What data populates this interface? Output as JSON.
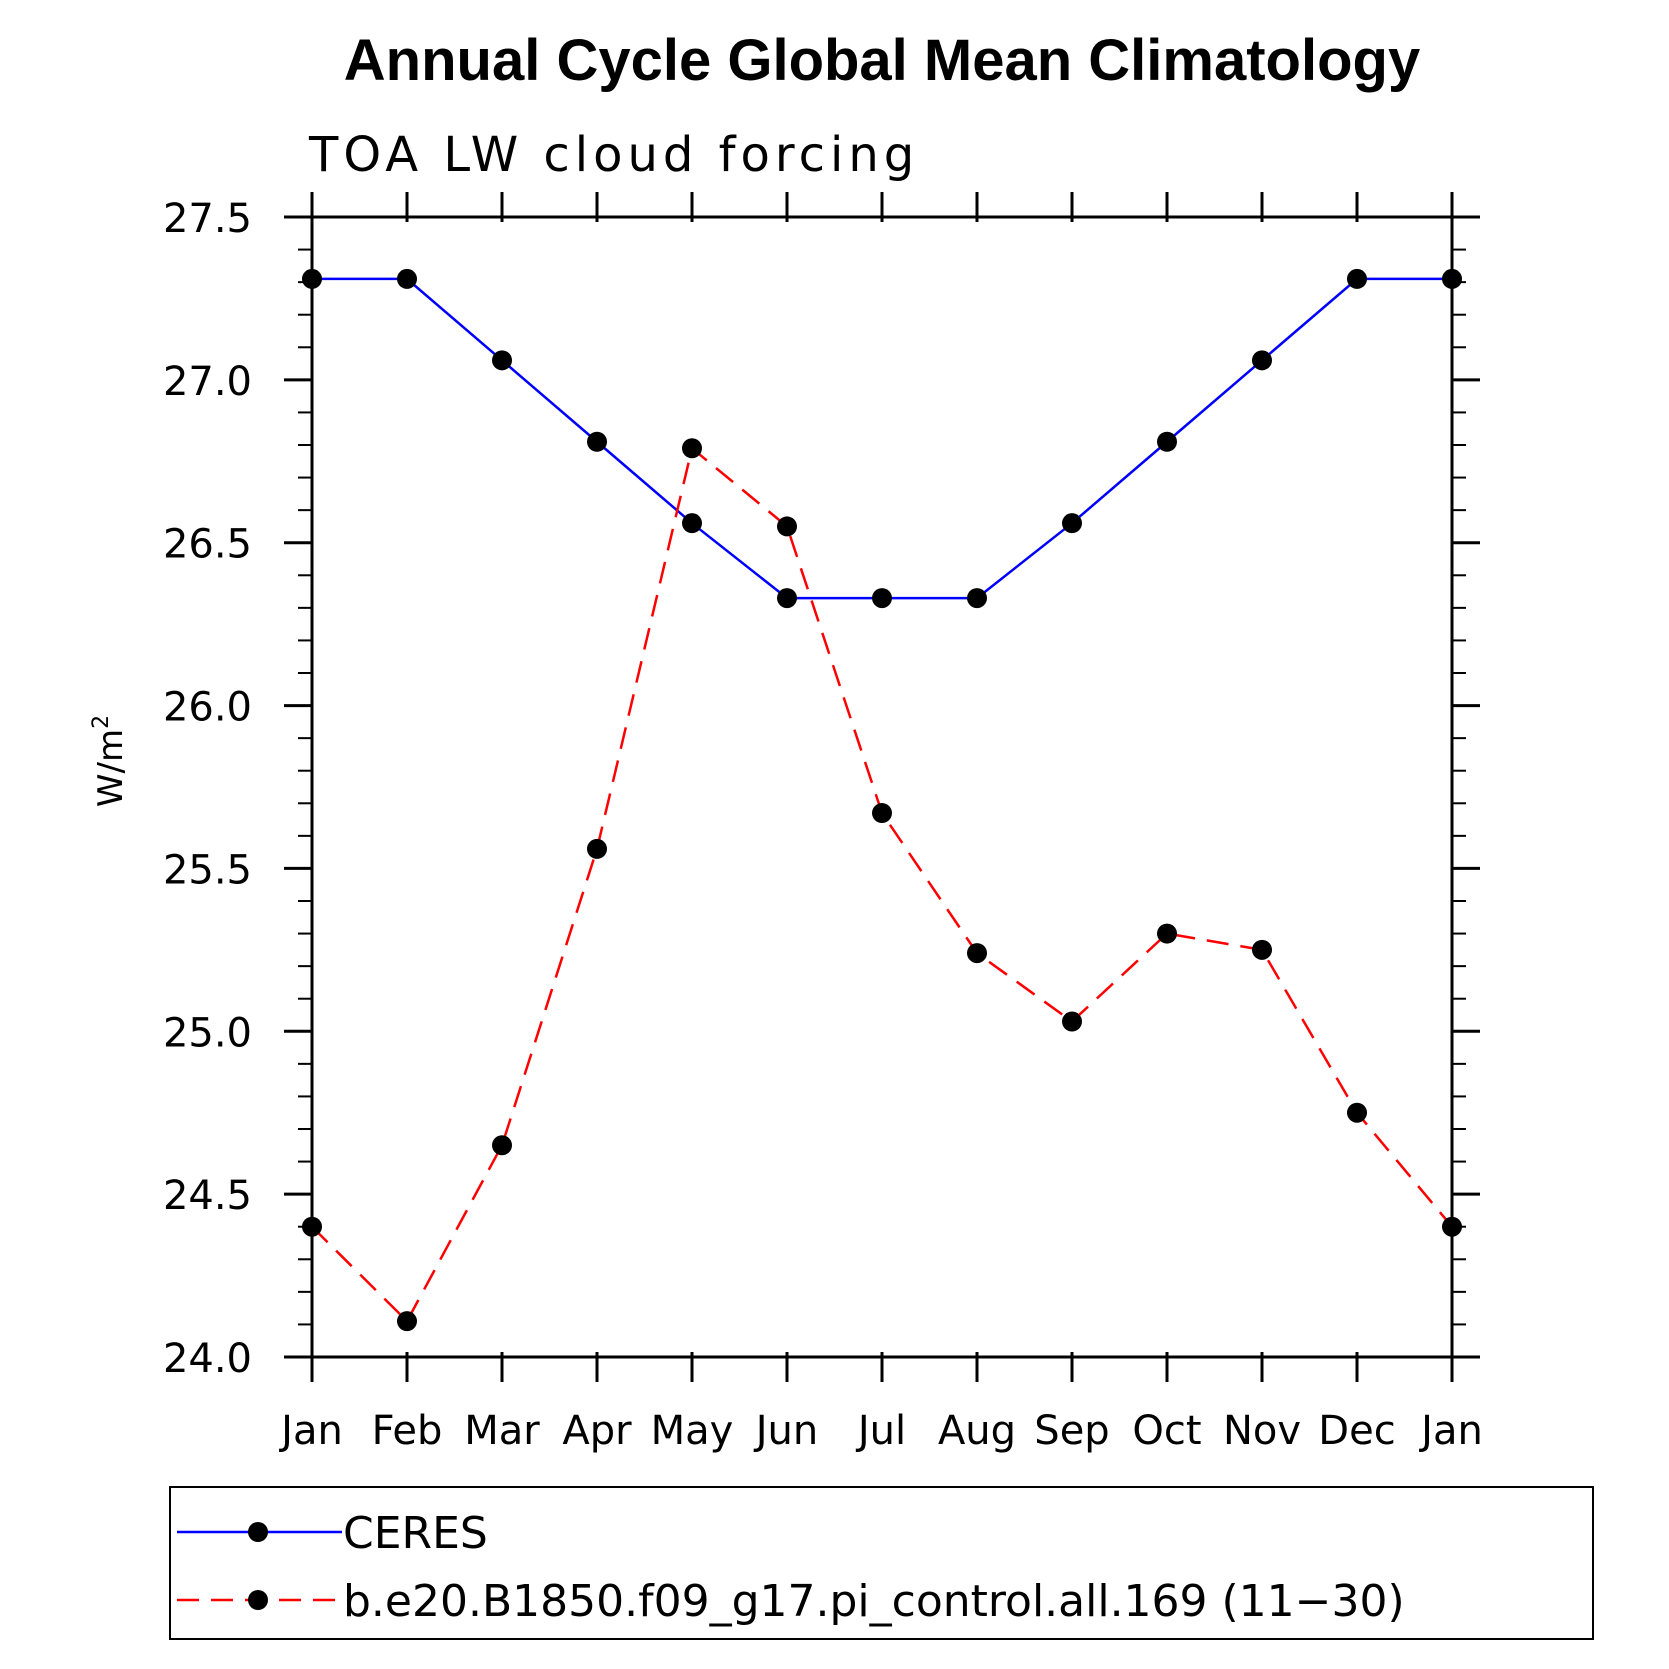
{
  "chart_data": {
    "type": "line",
    "title": "Annual Cycle Global Mean Climatology",
    "subtitle": "TOA LW cloud forcing",
    "xlabel": "",
    "ylabel": "W/m",
    "ylabel_superscript": "2",
    "categories": [
      "Jan",
      "Feb",
      "Mar",
      "Apr",
      "May",
      "Jun",
      "Jul",
      "Aug",
      "Sep",
      "Oct",
      "Nov",
      "Dec",
      "Jan"
    ],
    "yticks": [
      "24.0",
      "24.5",
      "25.0",
      "25.5",
      "26.0",
      "26.5",
      "27.0",
      "27.5"
    ],
    "ylim": [
      24.0,
      27.5
    ],
    "grid": false,
    "legend_position": "bottom",
    "series": [
      {
        "name": "CERES",
        "color": "#0000ff",
        "style": "solid",
        "values": [
          27.31,
          27.31,
          27.06,
          26.81,
          26.56,
          26.33,
          26.33,
          26.33,
          26.56,
          26.81,
          27.06,
          27.31,
          27.31
        ]
      },
      {
        "name": "b.e20.B1850.f09_g17.pi_control.all.169 (11−30)",
        "color": "#ff0000",
        "style": "dashed",
        "values": [
          24.4,
          24.11,
          24.65,
          25.56,
          26.79,
          26.55,
          25.67,
          25.24,
          25.03,
          25.3,
          25.25,
          24.75,
          24.4
        ]
      }
    ]
  }
}
